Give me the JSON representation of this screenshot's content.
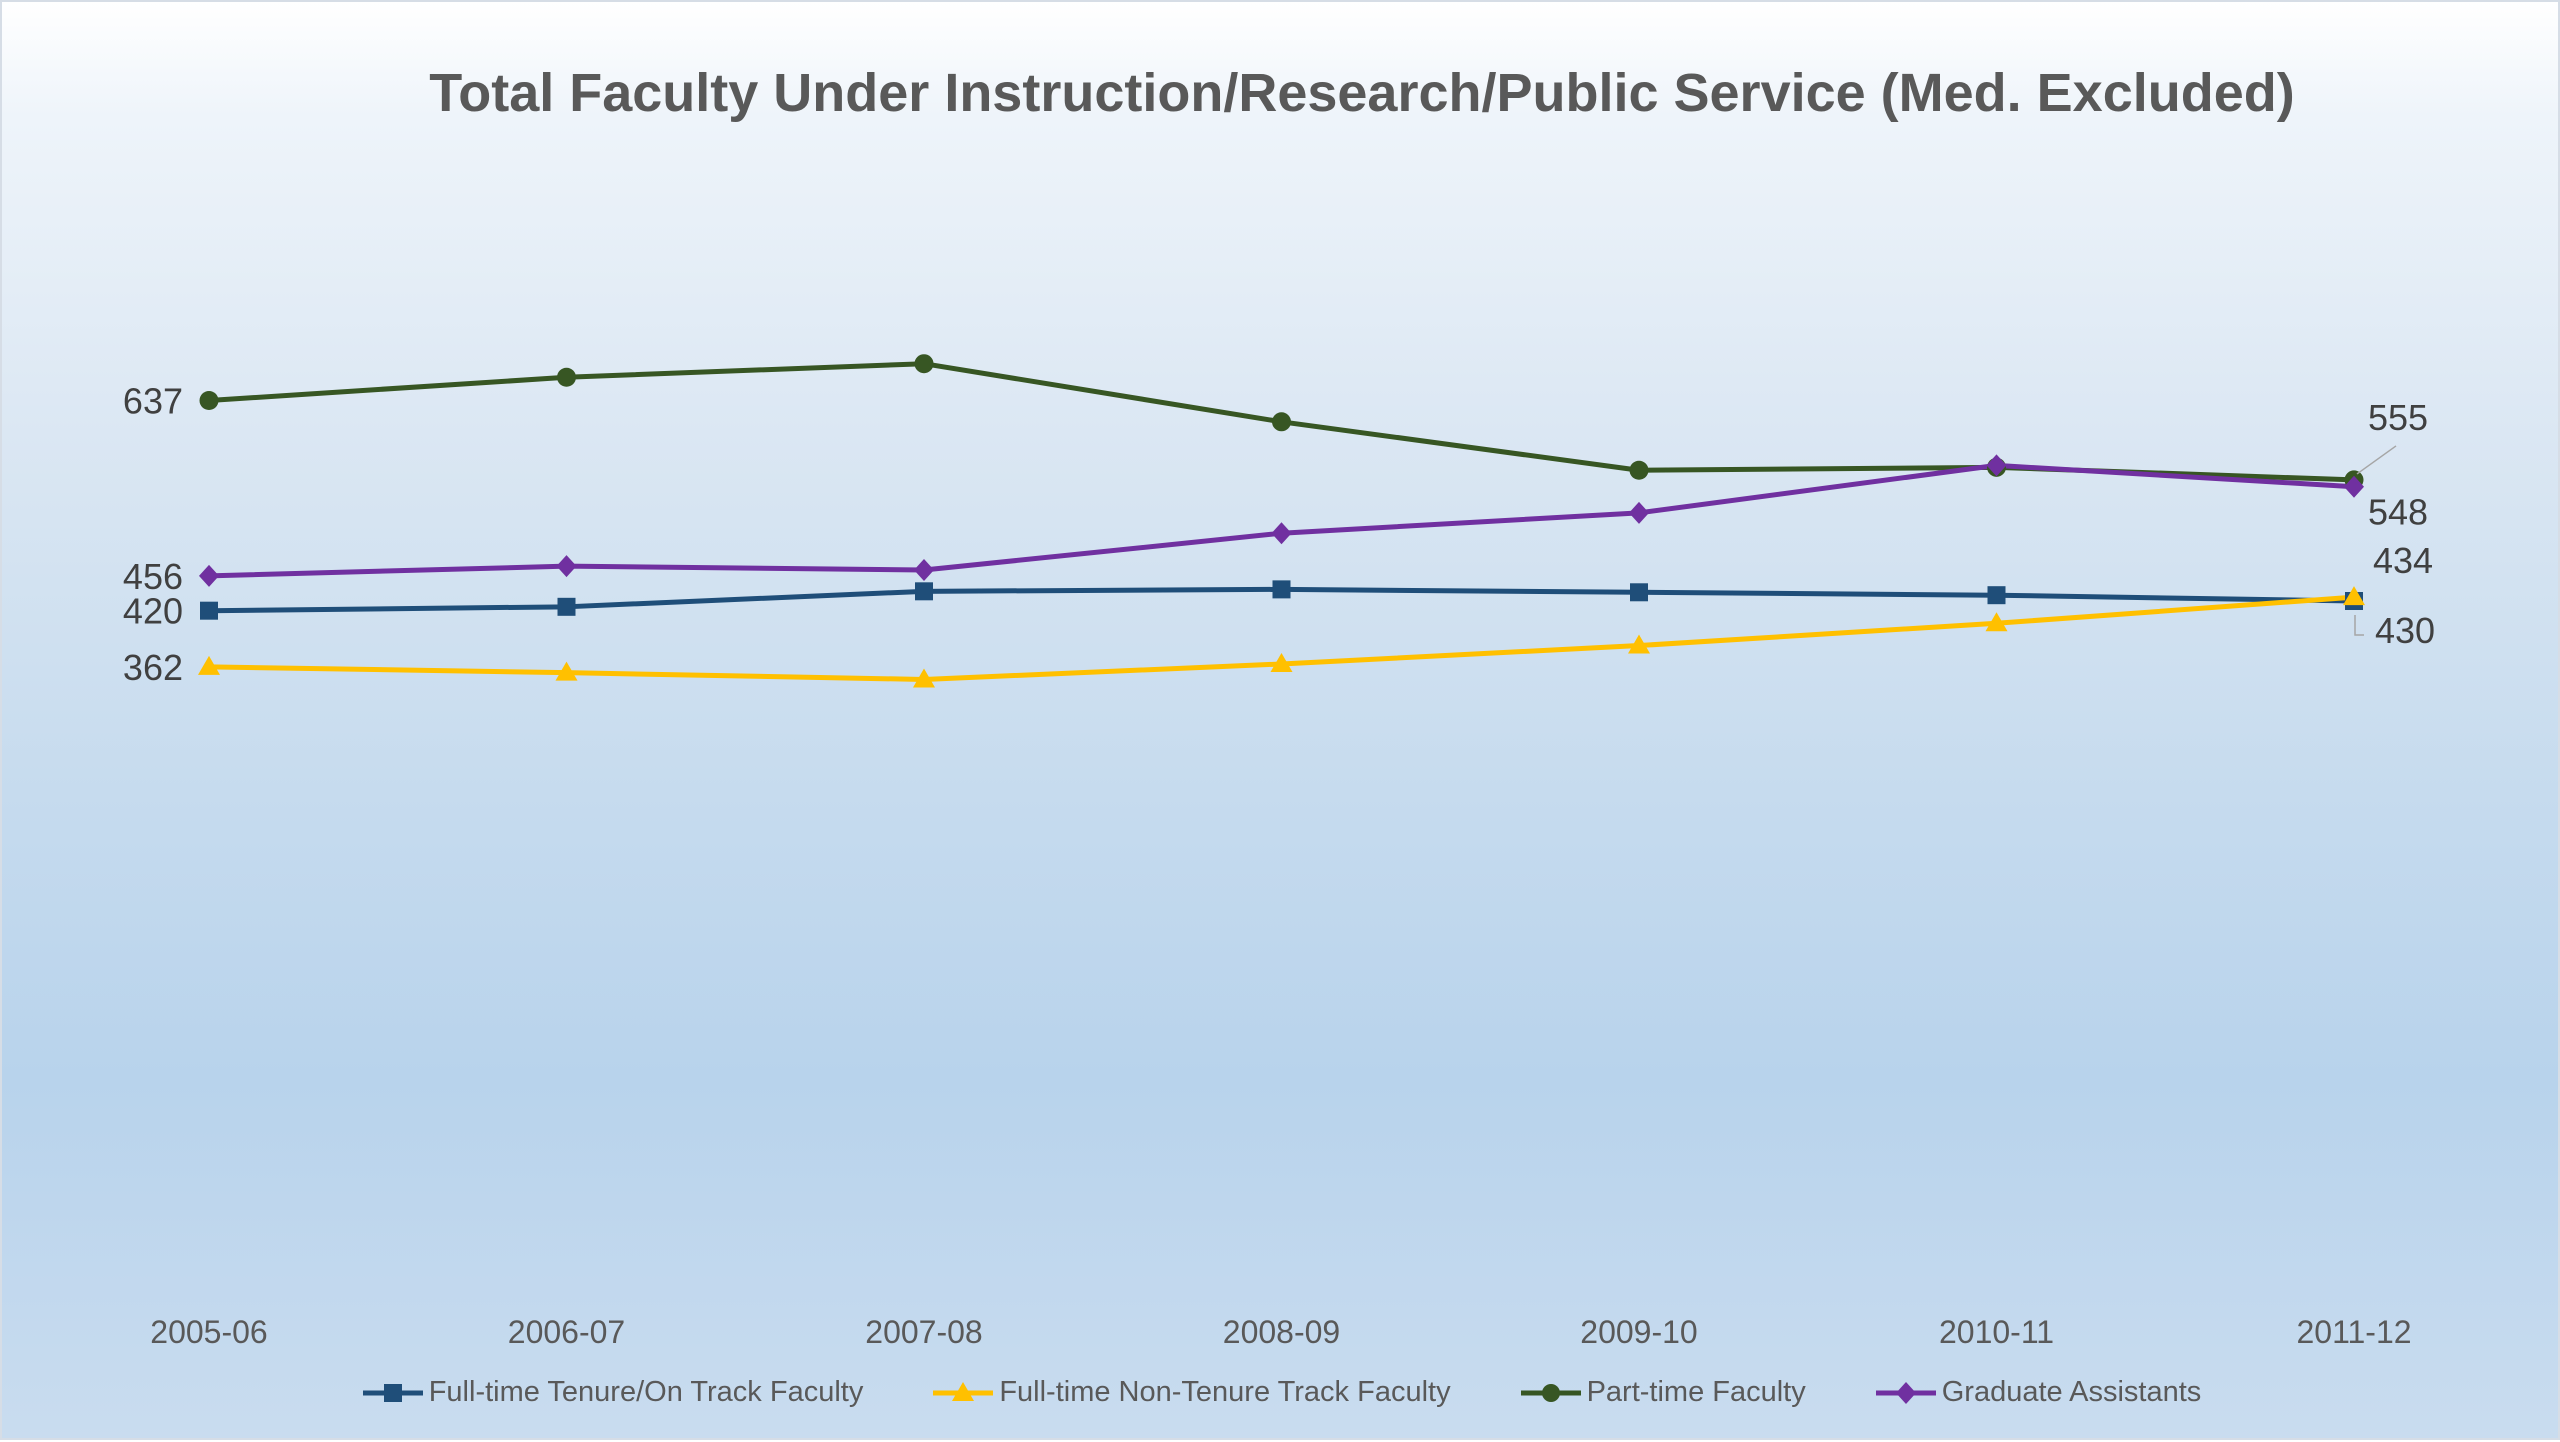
{
  "chart_data": {
    "type": "line",
    "title": "Total Faculty Under Instruction/Research/Public Service (Med. Excluded)",
    "xlabel": "",
    "ylabel": "",
    "grid": false,
    "legend_position": "bottom",
    "categories": [
      "2005-06",
      "2006-07",
      "2007-08",
      "2008-09",
      "2009-10",
      "2010-11",
      "2011-12"
    ],
    "series": [
      {
        "name": "Full-time Tenure/On Track Faculty",
        "values": [
          420,
          424,
          440,
          442,
          439,
          436,
          430
        ],
        "color": "#1f4e79",
        "marker": "square",
        "labels": [
          "420",
          "",
          "",
          "",
          "",
          "",
          "430"
        ]
      },
      {
        "name": "Full-time Non-Tenure Track Faculty",
        "values": [
          362,
          356,
          349,
          365,
          384,
          407,
          434
        ],
        "color": "#ffc000",
        "marker": "triangle",
        "labels": [
          "362",
          "",
          "",
          "",
          "",
          "",
          "434"
        ]
      },
      {
        "name": "Part-time Faculty",
        "values": [
          637,
          661,
          675,
          615,
          565,
          568,
          555
        ],
        "color": "#375623",
        "marker": "circle",
        "labels": [
          "637",
          "",
          "",
          "",
          "",
          "",
          "555"
        ]
      },
      {
        "name": "Graduate Assistants",
        "values": [
          456,
          466,
          462,
          500,
          521,
          570,
          548
        ],
        "color": "#7030a0",
        "marker": "diamond",
        "labels": [
          "456",
          "",
          "",
          "",
          "",
          "",
          "548"
        ]
      }
    ]
  }
}
